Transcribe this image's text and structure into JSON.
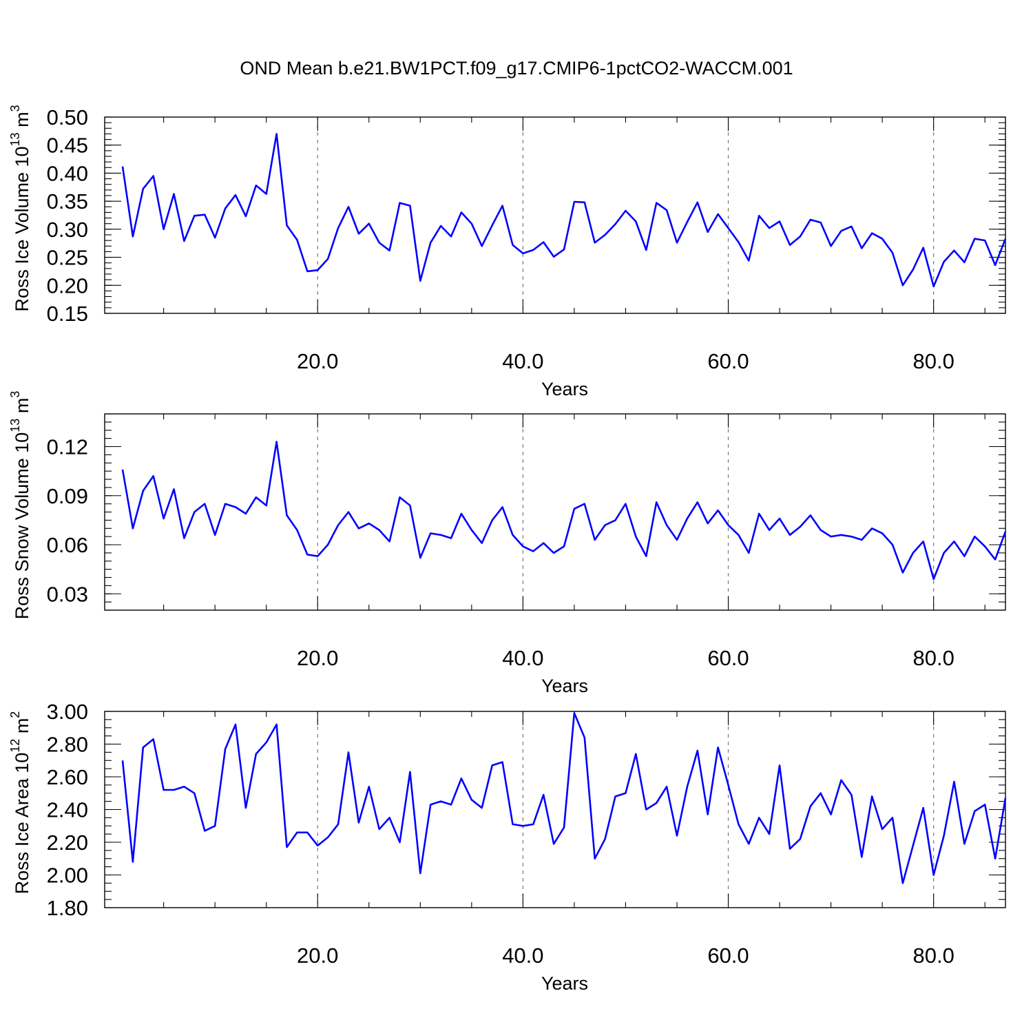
{
  "title": "OND Mean b.e21.BW1PCT.f09_g17.CMIP6-1pctCO2-WACCM.001",
  "line_color": "#0000ff",
  "chart_data": [
    {
      "type": "line",
      "ylabel": "Ross Ice Volume 10",
      "ylabel_exp": "13",
      "ylabel_unit": " m",
      "ylabel_unit_exp": "3",
      "xlabel": "Years",
      "xlim": [
        1,
        87
      ],
      "ylim": [
        0.15,
        0.5
      ],
      "yticks": [
        0.15,
        0.2,
        0.25,
        0.3,
        0.35,
        0.4,
        0.45,
        0.5
      ],
      "ytick_labels": [
        "0.15",
        "0.20",
        "0.25",
        "0.30",
        "0.35",
        "0.40",
        "0.45",
        "0.50"
      ],
      "yminor": 0.01,
      "xticks": [
        20,
        40,
        60,
        80
      ],
      "xtick_labels": [
        "20.0",
        "40.0",
        "60.0",
        "80.0"
      ],
      "grid": "vertical dashed",
      "x": [
        1,
        2,
        3,
        4,
        5,
        6,
        7,
        8,
        9,
        10,
        11,
        12,
        13,
        14,
        15,
        16,
        17,
        18,
        19,
        20,
        21,
        22,
        23,
        24,
        25,
        26,
        27,
        28,
        29,
        30,
        31,
        32,
        33,
        34,
        35,
        36,
        37,
        38,
        39,
        40,
        41,
        42,
        43,
        44,
        45,
        46,
        47,
        48,
        49,
        50,
        51,
        52,
        53,
        54,
        55,
        56,
        57,
        58,
        59,
        60,
        61,
        62,
        63,
        64,
        65,
        66,
        67,
        68,
        69,
        70,
        71,
        72,
        73,
        74,
        75,
        76,
        77,
        78,
        79,
        80,
        81,
        82,
        83,
        84,
        85,
        86,
        87
      ],
      "values": [
        0.412,
        0.287,
        0.372,
        0.395,
        0.3,
        0.363,
        0.279,
        0.324,
        0.326,
        0.285,
        0.337,
        0.361,
        0.323,
        0.378,
        0.363,
        0.47,
        0.307,
        0.281,
        0.225,
        0.227,
        0.247,
        0.302,
        0.34,
        0.292,
        0.31,
        0.276,
        0.262,
        0.347,
        0.342,
        0.208,
        0.276,
        0.306,
        0.287,
        0.33,
        0.31,
        0.27,
        0.307,
        0.342,
        0.272,
        0.257,
        0.263,
        0.277,
        0.251,
        0.264,
        0.349,
        0.348,
        0.276,
        0.29,
        0.309,
        0.333,
        0.314,
        0.263,
        0.347,
        0.334,
        0.276,
        0.313,
        0.348,
        0.295,
        0.327,
        0.302,
        0.277,
        0.244,
        0.324,
        0.302,
        0.314,
        0.272,
        0.287,
        0.317,
        0.312,
        0.27,
        0.297,
        0.305,
        0.266,
        0.293,
        0.283,
        0.258,
        0.2,
        0.228,
        0.267,
        0.198,
        0.242,
        0.262,
        0.241,
        0.283,
        0.28,
        0.236,
        0.283
      ]
    },
    {
      "type": "line",
      "ylabel": "Ross Snow Volume 10",
      "ylabel_exp": "13",
      "ylabel_unit": " m",
      "ylabel_unit_exp": "3",
      "xlabel": "Years",
      "xlim": [
        1,
        87
      ],
      "ylim": [
        0.02,
        0.14
      ],
      "yticks": [
        0.03,
        0.06,
        0.09,
        0.12
      ],
      "ytick_labels": [
        "0.03",
        "0.06",
        "0.09",
        "0.12"
      ],
      "yminor": 0.005,
      "xticks": [
        20,
        40,
        60,
        80
      ],
      "xtick_labels": [
        "20.0",
        "40.0",
        "60.0",
        "80.0"
      ],
      "grid": "vertical dashed",
      "x": [
        1,
        2,
        3,
        4,
        5,
        6,
        7,
        8,
        9,
        10,
        11,
        12,
        13,
        14,
        15,
        16,
        17,
        18,
        19,
        20,
        21,
        22,
        23,
        24,
        25,
        26,
        27,
        28,
        29,
        30,
        31,
        32,
        33,
        34,
        35,
        36,
        37,
        38,
        39,
        40,
        41,
        42,
        43,
        44,
        45,
        46,
        47,
        48,
        49,
        50,
        51,
        52,
        53,
        54,
        55,
        56,
        57,
        58,
        59,
        60,
        61,
        62,
        63,
        64,
        65,
        66,
        67,
        68,
        69,
        70,
        71,
        72,
        73,
        74,
        75,
        76,
        77,
        78,
        79,
        80,
        81,
        82,
        83,
        84,
        85,
        86,
        87
      ],
      "values": [
        0.106,
        0.07,
        0.093,
        0.102,
        0.076,
        0.094,
        0.064,
        0.08,
        0.085,
        0.066,
        0.085,
        0.083,
        0.079,
        0.089,
        0.084,
        0.123,
        0.078,
        0.069,
        0.054,
        0.053,
        0.06,
        0.072,
        0.08,
        0.07,
        0.073,
        0.069,
        0.062,
        0.089,
        0.084,
        0.052,
        0.067,
        0.066,
        0.064,
        0.079,
        0.069,
        0.061,
        0.075,
        0.083,
        0.066,
        0.059,
        0.056,
        0.061,
        0.055,
        0.059,
        0.082,
        0.085,
        0.063,
        0.072,
        0.075,
        0.085,
        0.065,
        0.053,
        0.086,
        0.072,
        0.063,
        0.076,
        0.086,
        0.073,
        0.081,
        0.072,
        0.066,
        0.055,
        0.079,
        0.069,
        0.076,
        0.066,
        0.071,
        0.078,
        0.069,
        0.065,
        0.066,
        0.065,
        0.063,
        0.07,
        0.067,
        0.06,
        0.043,
        0.055,
        0.062,
        0.039,
        0.055,
        0.062,
        0.053,
        0.065,
        0.059,
        0.051,
        0.068
      ]
    },
    {
      "type": "line",
      "ylabel": "Ross Ice Area 10",
      "ylabel_exp": "12",
      "ylabel_unit": " m",
      "ylabel_unit_exp": "2",
      "xlabel": "Years",
      "xlim": [
        1,
        87
      ],
      "ylim": [
        1.8,
        3.0
      ],
      "yticks": [
        1.8,
        2.0,
        2.2,
        2.4,
        2.6,
        2.8,
        3.0
      ],
      "ytick_labels": [
        "1.80",
        "2.00",
        "2.20",
        "2.40",
        "2.60",
        "2.80",
        "3.00"
      ],
      "yminor": 0.05,
      "xticks": [
        20,
        40,
        60,
        80
      ],
      "xtick_labels": [
        "20.0",
        "40.0",
        "60.0",
        "80.0"
      ],
      "grid": "vertical dashed",
      "x": [
        1,
        2,
        3,
        4,
        5,
        6,
        7,
        8,
        9,
        10,
        11,
        12,
        13,
        14,
        15,
        16,
        17,
        18,
        19,
        20,
        21,
        22,
        23,
        24,
        25,
        26,
        27,
        28,
        29,
        30,
        31,
        32,
        33,
        34,
        35,
        36,
        37,
        38,
        39,
        40,
        41,
        42,
        43,
        44,
        45,
        46,
        47,
        48,
        49,
        50,
        51,
        52,
        53,
        54,
        55,
        56,
        57,
        58,
        59,
        60,
        61,
        62,
        63,
        64,
        65,
        66,
        67,
        68,
        69,
        70,
        71,
        72,
        73,
        74,
        75,
        76,
        77,
        78,
        79,
        80,
        81,
        82,
        83,
        84,
        85,
        86,
        87
      ],
      "values": [
        2.7,
        2.08,
        2.78,
        2.83,
        2.52,
        2.52,
        2.54,
        2.5,
        2.27,
        2.3,
        2.77,
        2.92,
        2.41,
        2.74,
        2.81,
        2.92,
        2.17,
        2.26,
        2.26,
        2.18,
        2.23,
        2.31,
        2.75,
        2.32,
        2.54,
        2.28,
        2.35,
        2.2,
        2.63,
        2.01,
        2.43,
        2.45,
        2.43,
        2.59,
        2.46,
        2.41,
        2.67,
        2.69,
        2.31,
        2.3,
        2.31,
        2.49,
        2.19,
        2.29,
        2.99,
        2.84,
        2.1,
        2.22,
        2.48,
        2.5,
        2.74,
        2.4,
        2.44,
        2.54,
        2.24,
        2.54,
        2.76,
        2.37,
        2.78,
        2.55,
        2.31,
        2.19,
        2.35,
        2.25,
        2.67,
        2.16,
        2.22,
        2.42,
        2.5,
        2.37,
        2.58,
        2.49,
        2.11,
        2.48,
        2.28,
        2.35,
        1.95,
        2.18,
        2.41,
        2.0,
        2.24,
        2.57,
        2.19,
        2.39,
        2.43,
        2.1,
        2.47
      ]
    }
  ]
}
